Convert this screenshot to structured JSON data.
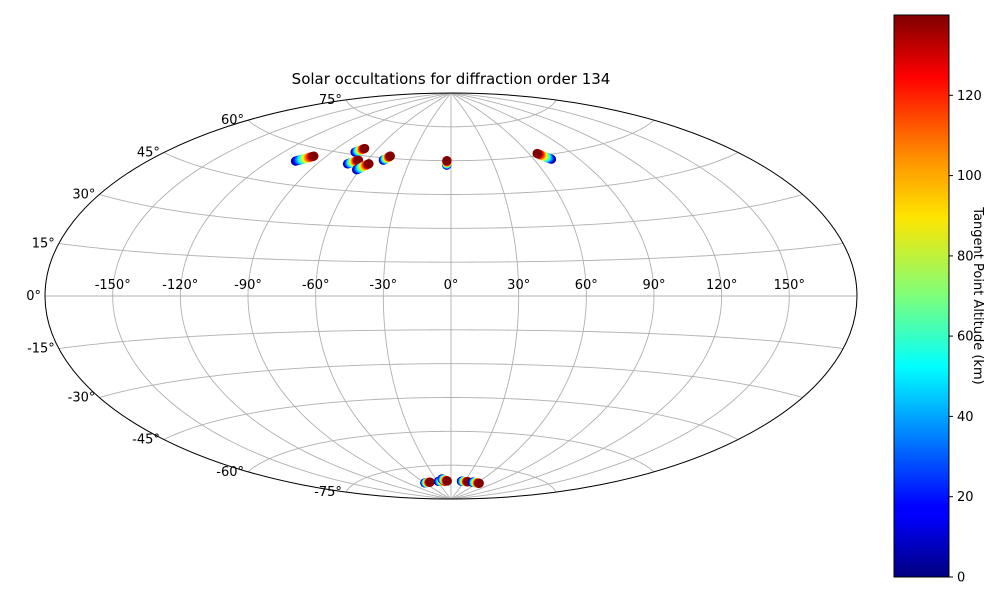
{
  "chart_data": {
    "type": "scatter",
    "projection": "aitoff",
    "title": "Solar occultations for diffraction order 134",
    "lon_ticks": [
      "-150°",
      "-120°",
      "-90°",
      "-60°",
      "-30°",
      "0°",
      "30°",
      "60°",
      "90°",
      "120°",
      "150°"
    ],
    "lon_tick_values": [
      -150,
      -120,
      -90,
      -60,
      -30,
      0,
      30,
      60,
      90,
      120,
      150
    ],
    "lat_ticks": [
      "-75°",
      "-60°",
      "-45°",
      "-30°",
      "-15°",
      "0°",
      "15°",
      "30°",
      "45°",
      "60°",
      "75°"
    ],
    "lat_tick_values": [
      -75,
      -60,
      -45,
      -30,
      -15,
      0,
      15,
      30,
      45,
      60,
      75
    ],
    "grid": true,
    "colorbar": {
      "label": "Tangent Point Altitude (km)",
      "ticks": [
        "0",
        "20",
        "40",
        "60",
        "80",
        "100",
        "120"
      ],
      "tick_values": [
        0,
        20,
        40,
        60,
        80,
        100,
        120
      ],
      "range": [
        0,
        140
      ],
      "colormap": "jet",
      "position": "right"
    },
    "occultations": [
      {
        "start": [
          -105,
          54
        ],
        "end": [
          -98,
          57
        ]
      },
      {
        "start": [
          -74,
          61
        ],
        "end": [
          -70,
          63
        ]
      },
      {
        "start": [
          -71,
          56
        ],
        "end": [
          -66,
          58
        ]
      },
      {
        "start": [
          -62,
          54
        ],
        "end": [
          -57,
          57
        ]
      },
      {
        "start": [
          -49,
          59
        ],
        "end": [
          -46,
          61
        ]
      },
      {
        "start": [
          -3,
          58
        ],
        "end": [
          -3,
          60
        ]
      },
      {
        "start": [
          72,
          58
        ],
        "end": [
          66,
          61
        ]
      },
      {
        "start": [
          -60,
          -82
        ],
        "end": [
          -47,
          -82
        ]
      },
      {
        "start": [
          -28,
          -82
        ],
        "end": [
          -11,
          -82
        ]
      },
      {
        "start": [
          -18,
          -81
        ],
        "end": [
          -8,
          -82
        ]
      },
      {
        "start": [
          23,
          -82
        ],
        "end": [
          38,
          -82
        ]
      },
      {
        "start": [
          48,
          -82
        ],
        "end": [
          65,
          -82
        ]
      }
    ]
  }
}
